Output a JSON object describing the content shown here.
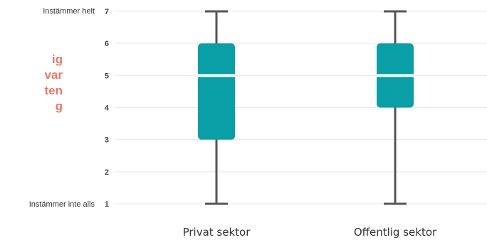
{
  "side_title": {
    "lines": [
      "ig",
      "var",
      "ten",
      "g"
    ]
  },
  "chart_data": {
    "type": "box",
    "categories": [
      "Privat sektor",
      "Offentlig sektor"
    ],
    "boxes": [
      {
        "name": "Privat sektor",
        "min": 1,
        "q1": 3,
        "median": 5,
        "q3": 6,
        "max": 7
      },
      {
        "name": "Offentlig sektor",
        "min": 1,
        "q1": 4,
        "median": 5,
        "q3": 6,
        "max": 7
      }
    ],
    "yticks": [
      1,
      2,
      3,
      4,
      5,
      6,
      7
    ],
    "ylim": [
      1,
      7
    ],
    "y_endpoint_labels": {
      "top": "Instämmer helt",
      "bottom": "Instämmer inte alls"
    },
    "grid": true,
    "colors": {
      "box": "#0a9ea6",
      "whisker": "#555555",
      "median": "#ffffff",
      "grid": "#e6e6e6",
      "accent": "#e8776a"
    }
  }
}
